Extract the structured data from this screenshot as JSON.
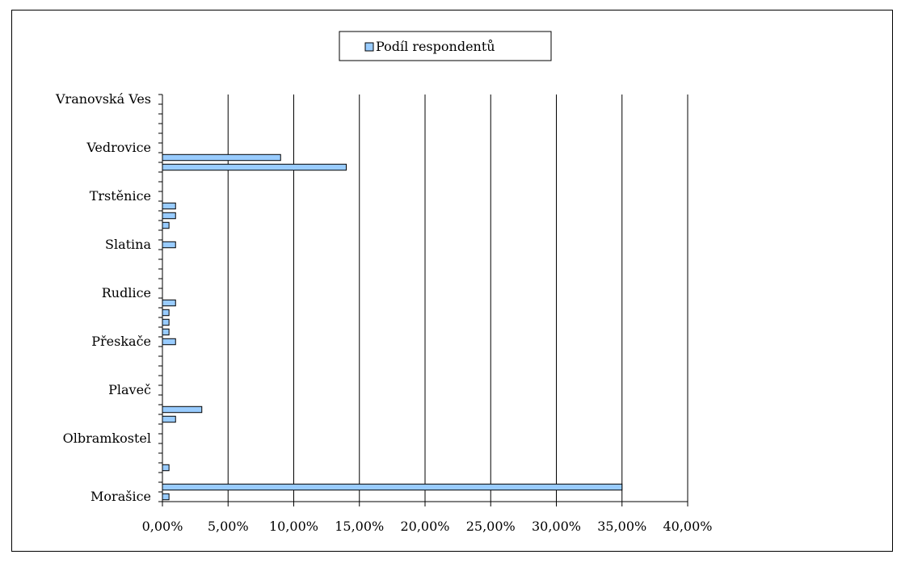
{
  "chart_data": {
    "type": "bar",
    "orientation": "horizontal",
    "categories": [
      "Morašice",
      "",
      "",
      "",
      "",
      "",
      "Olbramkostel",
      "",
      "",
      "",
      "",
      "Plaveč",
      "",
      "",
      "",
      "",
      "Přeskače",
      "",
      "",
      "",
      "",
      "Rudlice",
      "",
      "",
      "",
      "",
      "Slatina",
      "",
      "",
      "",
      "",
      "Trstěnice",
      "",
      "",
      "",
      "",
      "Vedrovice",
      "",
      "",
      "",
      "",
      "Vranovská Ves"
    ],
    "series": [
      {
        "name": "Podíl respondentů",
        "color": "#99ccff",
        "values": [
          0.005,
          0.35,
          0.0,
          0.005,
          0.0,
          0.0,
          0.0,
          0.0,
          0.01,
          0.03,
          0.0,
          0.0,
          0.0,
          0.0,
          0.0,
          0.0,
          0.01,
          0.005,
          0.005,
          0.005,
          0.01,
          0.0,
          0.0,
          0.0,
          0.0,
          0.0,
          0.01,
          0.0,
          0.005,
          0.01,
          0.01,
          0.0,
          0.0,
          0.0,
          0.14,
          0.09,
          0.0,
          0.0,
          0.0,
          0.0,
          0.0,
          0.0
        ]
      }
    ],
    "xlim": [
      0,
      0.4
    ],
    "xticks": [
      "0,00%",
      "5,00%",
      "10,00%",
      "15,00%",
      "20,00%",
      "25,00%",
      "30,00%",
      "35,00%",
      "40,00%"
    ],
    "grid": "vertical",
    "legend_position": "top"
  },
  "legend": {
    "label": "Podíl respondentů"
  }
}
